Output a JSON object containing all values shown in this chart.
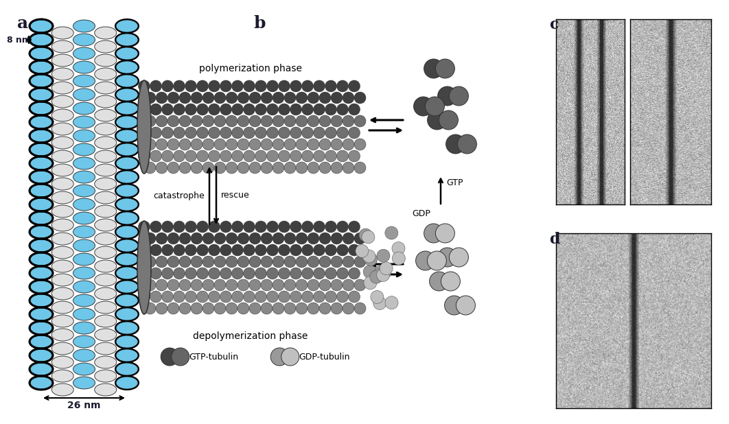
{
  "title_a": "a",
  "title_b": "b",
  "title_c": "c",
  "title_d": "d",
  "label_8nm": "8 nm",
  "label_26nm": "26 nm",
  "label_poly": "polymerization phase",
  "label_depoly": "depolymerization phase",
  "label_cat": "catastrophe",
  "label_rescue": "rescue",
  "label_gdp": "GDP",
  "label_gtp": "GTP",
  "label_gtp_tub": "GTP-tubulin",
  "label_gdp_tub": "GDP-tubulin",
  "color_dark_gray": "#555555",
  "color_med_gray": "#888888",
  "color_light_gray": "#b0b0b0",
  "color_blue": "#6ec6e8",
  "color_white_bead": "#e0e0e0",
  "color_bg": "#ffffff",
  "color_outline": "#222222",
  "color_label": "#1a1a2e",
  "color_black": "#111111"
}
